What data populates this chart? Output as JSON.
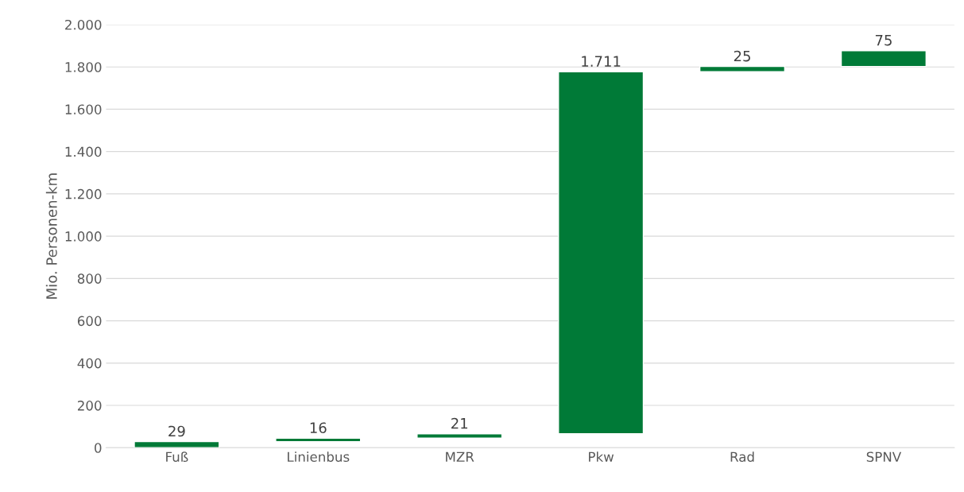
{
  "chart_data": {
    "type": "bar",
    "ylabel": "Mio. Personen-km",
    "categories": [
      "Fuß",
      "Linienbus",
      "MZR",
      "Pkw",
      "Rad",
      "SPNV"
    ],
    "values": [
      29,
      16,
      21,
      1711,
      25,
      75
    ],
    "base": [
      0,
      29,
      45,
      66,
      1777,
      1802
    ],
    "value_labels": [
      "29",
      "16",
      "21",
      "1.711",
      "25",
      "75"
    ],
    "color": "#007a37",
    "ylim": [
      0,
      2000
    ],
    "yticks": [
      0,
      {
        "value": 200,
        "label": "200"
      },
      {
        "value": 400,
        "label": "400"
      },
      {
        "value": 600,
        "label": "600"
      },
      {
        "value": 800,
        "label": "800"
      },
      {
        "value": 1000,
        "label": "1.000"
      },
      {
        "value": 1200,
        "label": "1.200"
      },
      {
        "value": 1400,
        "label": "1.400"
      },
      {
        "value": 1600,
        "label": "1.600"
      },
      {
        "value": 1800,
        "label": "1.800"
      },
      {
        "value": 2000,
        "label": "2.000"
      }
    ],
    "grid": "y",
    "legend": false
  }
}
